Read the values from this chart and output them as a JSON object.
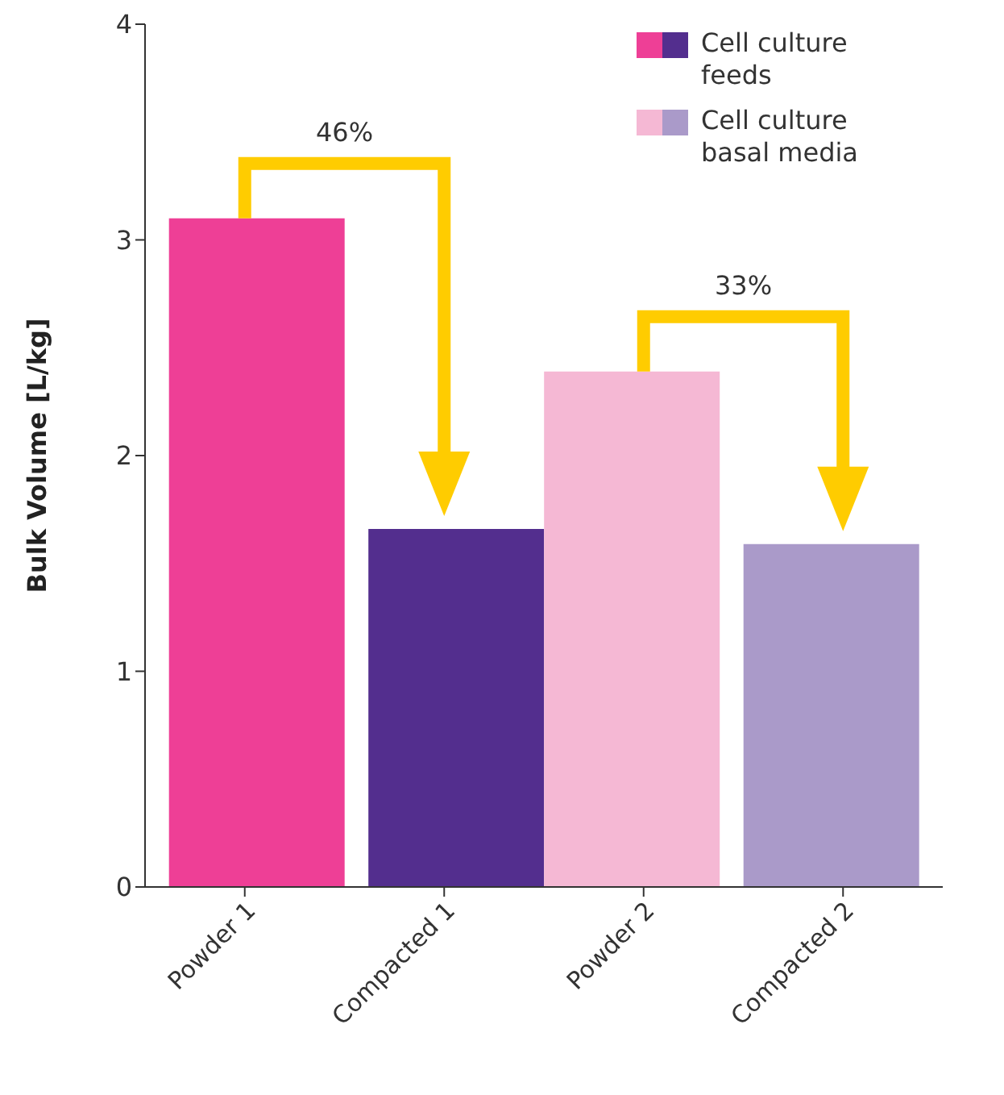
{
  "chart_data": {
    "type": "bar",
    "ylabel": "Bulk Volume [L/kg]",
    "categories": [
      "Powder 1",
      "Compacted 1",
      "Powder 2",
      "Compacted 2"
    ],
    "series": [
      {
        "name": "Cell culture feeds",
        "colors": [
          "#ee3f96",
          "#532e8e",
          null,
          null
        ],
        "values": [
          3.1,
          1.66,
          null,
          null
        ]
      },
      {
        "name": "Cell culture basal media",
        "colors": [
          null,
          null,
          "#f5b8d4",
          "#aa9ac9"
        ],
        "values": [
          null,
          null,
          2.39,
          1.59
        ]
      }
    ],
    "ylim": [
      0,
      4
    ],
    "yticks": [
      0,
      1,
      2,
      3,
      4
    ],
    "grid": false,
    "legend": "top right",
    "annotations": [
      "46%",
      "33%"
    ]
  }
}
